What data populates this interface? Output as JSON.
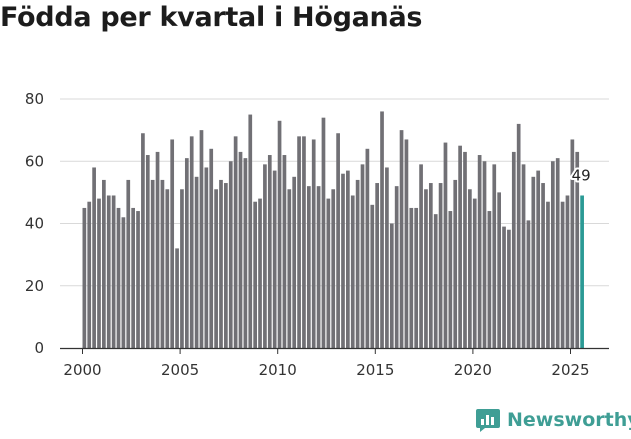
{
  "chart_data": {
    "type": "bar",
    "title": "Födda per kvartal i Höganäs",
    "xlabel": "",
    "ylabel": "",
    "ylim": [
      0,
      80
    ],
    "y_ticks": [
      0,
      20,
      40,
      60,
      80
    ],
    "x_ticks": [
      2000,
      2005,
      2010,
      2015,
      2020,
      2025
    ],
    "x_start": 2000,
    "highlight_label": "49",
    "colors": {
      "bar": "#717075",
      "highlight": "#2b9a95",
      "grid": "#d9d9d9",
      "axis": "#333333"
    },
    "series": [
      {
        "name": "Födda",
        "values": [
          45,
          47,
          58,
          48,
          54,
          49,
          49,
          45,
          42,
          54,
          45,
          44,
          69,
          62,
          54,
          63,
          54,
          51,
          67,
          32,
          51,
          61,
          68,
          55,
          70,
          58,
          64,
          51,
          54,
          53,
          60,
          68,
          63,
          61,
          75,
          47,
          48,
          59,
          62,
          57,
          73,
          62,
          51,
          55,
          68,
          68,
          52,
          67,
          52,
          74,
          48,
          51,
          69,
          56,
          57,
          49,
          54,
          59,
          64,
          46,
          53,
          76,
          58,
          40,
          52,
          70,
          67,
          45,
          45,
          59,
          51,
          53,
          43,
          53,
          66,
          44,
          54,
          65,
          63,
          51,
          48,
          62,
          60,
          44,
          59,
          50,
          39,
          38,
          63,
          72,
          59,
          41,
          55,
          57,
          53,
          47,
          60,
          61,
          47,
          49,
          67,
          63,
          49
        ]
      }
    ]
  },
  "brand": {
    "name": "Newsworthy"
  }
}
